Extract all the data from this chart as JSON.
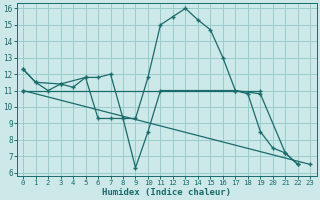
{
  "xlabel": "Humidex (Indice chaleur)",
  "bg_color": "#cce8e8",
  "grid_color": "#99cccc",
  "line_color": "#1a6b6b",
  "xlim": [
    -0.5,
    23.5
  ],
  "ylim": [
    5.8,
    16.3
  ],
  "xticks": [
    0,
    1,
    2,
    3,
    4,
    5,
    6,
    7,
    8,
    9,
    10,
    11,
    12,
    13,
    14,
    15,
    16,
    17,
    18,
    19,
    20,
    21,
    22,
    23
  ],
  "yticks": [
    6,
    7,
    8,
    9,
    10,
    11,
    12,
    13,
    14,
    15,
    16
  ],
  "line1_x": [
    0,
    1,
    2,
    3,
    4,
    5,
    6,
    7,
    8,
    9,
    10,
    11,
    12,
    13,
    14,
    15,
    16,
    17,
    18,
    19,
    20,
    21,
    22
  ],
  "line1_y": [
    12.3,
    11.5,
    11.0,
    11.4,
    11.2,
    11.8,
    11.8,
    12.0,
    9.3,
    9.3,
    11.8,
    15.0,
    15.5,
    16.0,
    15.3,
    14.7,
    13.0,
    11.0,
    10.8,
    8.5,
    7.5,
    7.2,
    6.5
  ],
  "line2_x": [
    0,
    1,
    3,
    5,
    6,
    7,
    8,
    9,
    10,
    11,
    17,
    19,
    21,
    22
  ],
  "line2_y": [
    12.3,
    11.5,
    11.4,
    11.8,
    9.3,
    9.3,
    9.3,
    6.3,
    8.5,
    11.0,
    11.0,
    10.8,
    7.2,
    6.5
  ],
  "line3_x": [
    0,
    19
  ],
  "line3_y": [
    11.0,
    11.0
  ],
  "line4_x": [
    0,
    23
  ],
  "line4_y": [
    11.0,
    6.5
  ]
}
